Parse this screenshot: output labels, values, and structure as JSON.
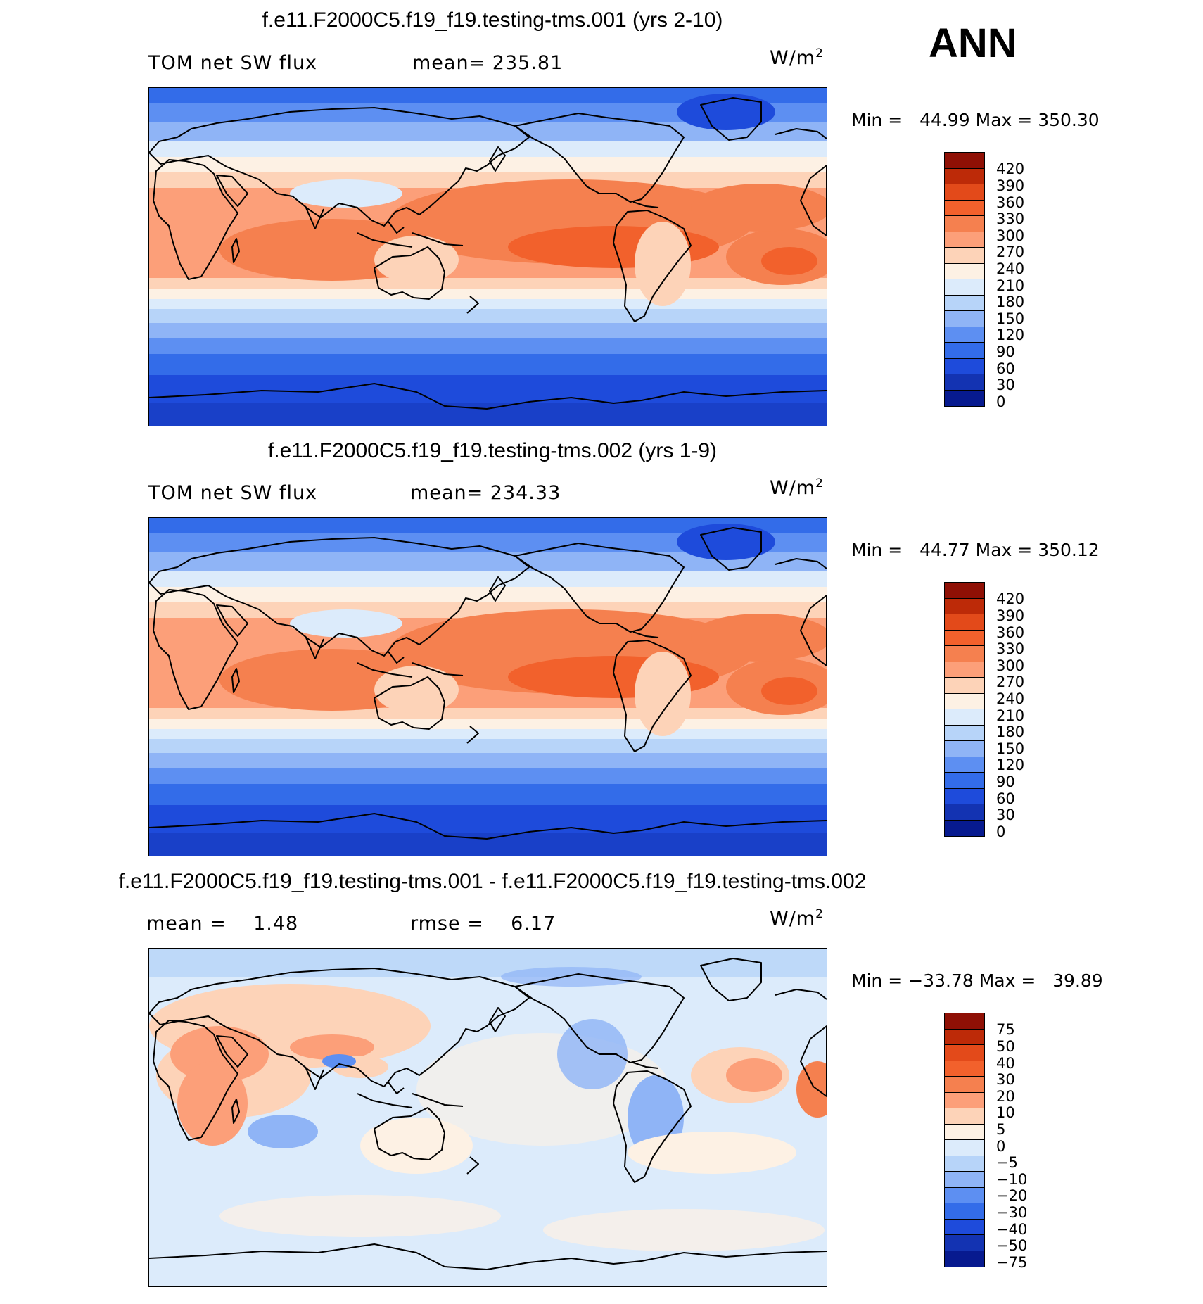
{
  "season": "ANN",
  "units": "W/m²",
  "colors": {
    "levels_pos": [
      "#fdf1e4",
      "#fdd3b8",
      "#fc9f79",
      "#f5804f",
      "#f2612c",
      "#e34a1a",
      "#bd2a08",
      "#8f1005"
    ],
    "levels_neg": [
      "#dcebfb",
      "#b7d4f9",
      "#8fb4f6",
      "#5d8ff2",
      "#336ce9",
      "#1e4bdb",
      "#1333b2",
      "#071a8f"
    ],
    "coast": "#000000"
  },
  "panels": [
    {
      "title": "f.e11.F2000C5.f19_f19.testing-tms.001 (yrs 2-10)",
      "left_label": "TOM net SW flux",
      "center_label": "mean= 235.81",
      "units": "W/m",
      "units_exp": "2",
      "min_label": "Min =",
      "min_value": "44.99",
      "max_label": "Max =",
      "max_value": "350.30",
      "colorbar_ticks": [
        "420",
        "390",
        "360",
        "330",
        "300",
        "270",
        "240",
        "210",
        "180",
        "150",
        "120",
        "90",
        "60",
        "30",
        "0"
      ]
    },
    {
      "title": "f.e11.F2000C5.f19_f19.testing-tms.002 (yrs 1-9)",
      "left_label": "TOM net SW flux",
      "center_label": "mean= 234.33",
      "units": "W/m",
      "units_exp": "2",
      "min_label": "Min =",
      "min_value": "44.77",
      "max_label": "Max =",
      "max_value": "350.12",
      "colorbar_ticks": [
        "420",
        "390",
        "360",
        "330",
        "300",
        "270",
        "240",
        "210",
        "180",
        "150",
        "120",
        "90",
        "60",
        "30",
        "0"
      ]
    },
    {
      "title": "f.e11.F2000C5.f19_f19.testing-tms.001 - f.e11.F2000C5.f19_f19.testing-tms.002",
      "left_label": "mean =    1.48",
      "center_label": "rmse =    6.17",
      "units": "W/m",
      "units_exp": "2",
      "min_label": "Min =",
      "min_value": "−33.78",
      "max_label": "Max =",
      "max_value": "39.89",
      "colorbar_ticks": [
        "75",
        "50",
        "40",
        "30",
        "20",
        "10",
        "5",
        "0",
        "−5",
        "−10",
        "−20",
        "−30",
        "−40",
        "−50",
        "−75"
      ]
    }
  ]
}
